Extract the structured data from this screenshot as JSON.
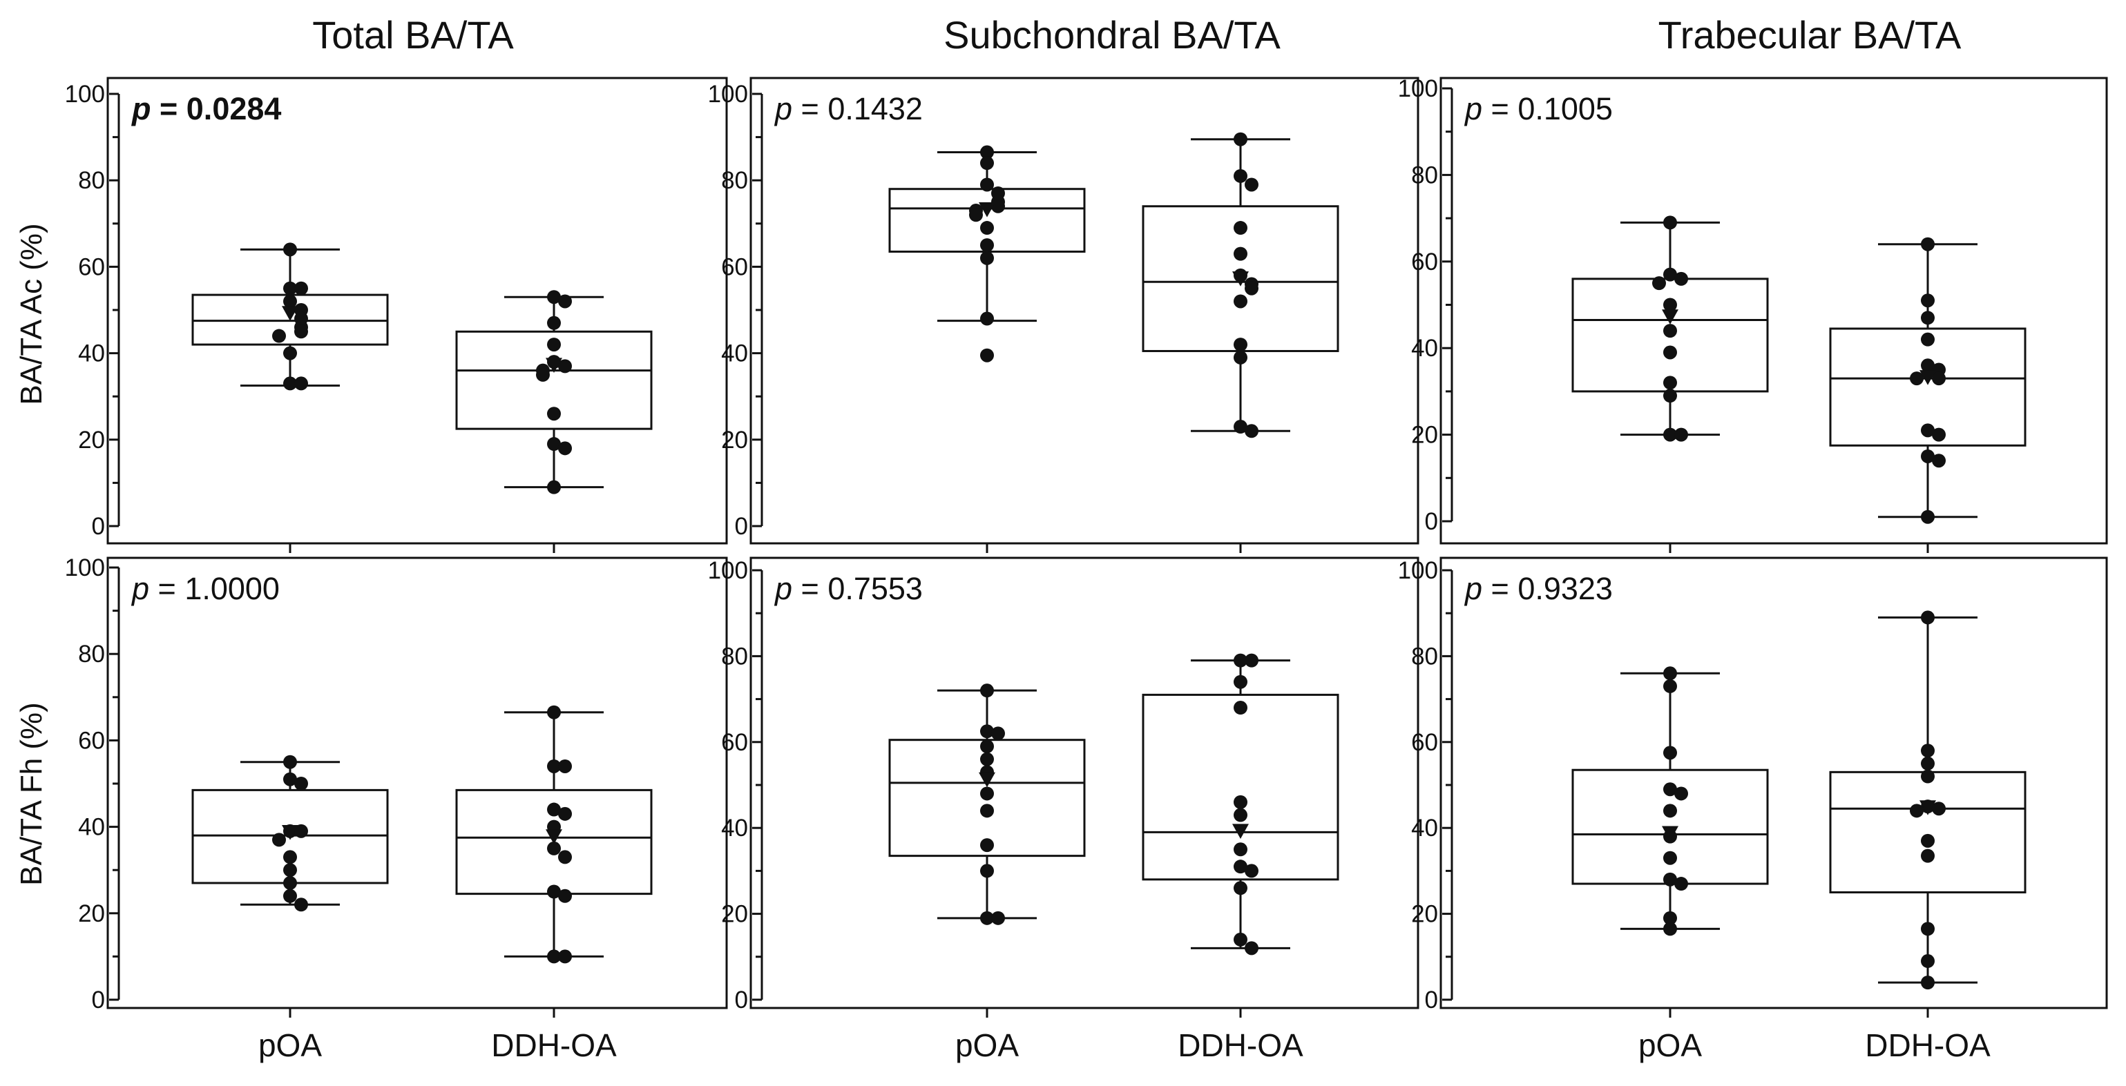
{
  "chart_data": {
    "type": "box-plot with points",
    "column_titles": [
      "Total BA/TA",
      "Subchondral BA/TA",
      "Trabecular BA/TA"
    ],
    "row_labels": [
      "BA/TA  Ac (%)",
      "BA/TA  Fh (%)"
    ],
    "categories": [
      "pOA",
      "DDH-OA"
    ],
    "y_range": [
      0,
      100
    ],
    "y_ticks": [
      0,
      20,
      40,
      60,
      80,
      100
    ],
    "panels": [
      {
        "row": 0,
        "col": 0,
        "p_prefix": "p",
        "p_value": "= 0.0284",
        "p_bold": true,
        "groups": [
          {
            "name": "pOA",
            "whisker_low": 32.5,
            "q1": 42,
            "median": 47.5,
            "q3": 53.5,
            "whisker_high": 64,
            "mean": 49,
            "points": [
              64,
              55,
              55,
              52,
              50,
              48,
              46,
              45,
              44,
              40,
              33,
              33
            ]
          },
          {
            "name": "DDH-OA",
            "whisker_low": 9,
            "q1": 22.5,
            "median": 36,
            "q3": 45,
            "whisker_high": 53,
            "mean": 37,
            "points": [
              53,
              52,
              47,
              42,
              38,
              37,
              36,
              35,
              26,
              19,
              18,
              9
            ]
          }
        ]
      },
      {
        "row": 0,
        "col": 1,
        "p_prefix": "p",
        "p_value": "= 0.1432",
        "p_bold": false,
        "groups": [
          {
            "name": "pOA",
            "whisker_low": 47.5,
            "q1": 63.5,
            "median": 73.5,
            "q3": 78,
            "whisker_high": 86.5,
            "mean": 73,
            "points": [
              86.5,
              84,
              79,
              77,
              75,
              74,
              73,
              72,
              69,
              65,
              62,
              48,
              39.5
            ]
          },
          {
            "name": "DDH-OA",
            "whisker_low": 22,
            "q1": 40.5,
            "median": 56.5,
            "q3": 74,
            "whisker_high": 89.5,
            "mean": 57,
            "points": [
              89.5,
              81,
              79,
              69,
              63,
              58,
              56,
              55,
              52,
              42,
              39,
              23,
              22
            ]
          }
        ]
      },
      {
        "row": 0,
        "col": 2,
        "p_prefix": "p",
        "p_value": "= 0.1005",
        "p_bold": false,
        "groups": [
          {
            "name": "pOA",
            "whisker_low": 20,
            "q1": 30,
            "median": 46.5,
            "q3": 56,
            "whisker_high": 69,
            "mean": 47,
            "points": [
              69,
              57,
              56,
              55,
              50,
              44,
              39,
              32,
              29,
              20,
              20
            ]
          },
          {
            "name": "DDH-OA",
            "whisker_low": 1,
            "q1": 17.5,
            "median": 33,
            "q3": 44.5,
            "whisker_high": 64,
            "mean": 33,
            "points": [
              64,
              51,
              47,
              42,
              36,
              35,
              33,
              33,
              21,
              20,
              15,
              14,
              1
            ]
          }
        ]
      },
      {
        "row": 1,
        "col": 0,
        "p_prefix": "p",
        "p_value": "= 1.0000",
        "p_bold": false,
        "groups": [
          {
            "name": "pOA",
            "whisker_low": 22,
            "q1": 27,
            "median": 38,
            "q3": 48.5,
            "whisker_high": 55,
            "mean": 38.5,
            "points": [
              55,
              51,
              50,
              39,
              39,
              37,
              33,
              30,
              27,
              24,
              22
            ]
          },
          {
            "name": "DDH-OA",
            "whisker_low": 10,
            "q1": 24.5,
            "median": 37.5,
            "q3": 48.5,
            "whisker_high": 66.5,
            "mean": 37.5,
            "points": [
              66.5,
              54,
              54,
              44,
              43,
              40,
              35,
              33,
              25,
              24,
              10,
              10
            ]
          }
        ]
      },
      {
        "row": 1,
        "col": 1,
        "p_prefix": "p",
        "p_value": "= 0.7553",
        "p_bold": false,
        "groups": [
          {
            "name": "pOA",
            "whisker_low": 19,
            "q1": 33.5,
            "median": 50.5,
            "q3": 60.5,
            "whisker_high": 72,
            "mean": 51,
            "points": [
              72,
              62.5,
              62,
              59,
              56,
              53,
              48,
              44,
              36,
              30,
              19,
              19
            ]
          },
          {
            "name": "DDH-OA",
            "whisker_low": 12,
            "q1": 28,
            "median": 39,
            "q3": 71,
            "whisker_high": 79,
            "mean": 39,
            "points": [
              79,
              79,
              74,
              68,
              46,
              43,
              35,
              31,
              30,
              26,
              14,
              12
            ]
          }
        ]
      },
      {
        "row": 1,
        "col": 2,
        "p_prefix": "p",
        "p_value": "= 0.9323",
        "p_bold": false,
        "groups": [
          {
            "name": "pOA",
            "whisker_low": 16.5,
            "q1": 27,
            "median": 38.5,
            "q3": 53.5,
            "whisker_high": 76,
            "mean": 38.5,
            "points": [
              76,
              73,
              57.5,
              49,
              48,
              44,
              38,
              33,
              28,
              27,
              19,
              16.5
            ]
          },
          {
            "name": "DDH-OA",
            "whisker_low": 4,
            "q1": 25,
            "median": 44.5,
            "q3": 53,
            "whisker_high": 89,
            "mean": 44.5,
            "points": [
              89,
              58,
              55,
              52,
              45,
              44.5,
              44,
              37,
              33.5,
              16.5,
              9,
              4
            ]
          }
        ]
      }
    ]
  }
}
